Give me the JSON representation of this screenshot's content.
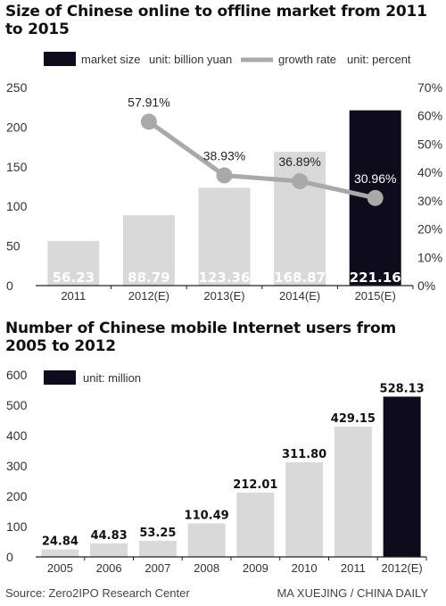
{
  "chart_data": [
    {
      "type": "bar",
      "title": "Size of Chinese online to offline market from 2011 to 2015",
      "categories": [
        "2011",
        "2012(E)",
        "2013(E)",
        "2014(E)",
        "2015(E)"
      ],
      "series": [
        {
          "name": "market size",
          "values": [
            56.23,
            88.79,
            123.36,
            168.87,
            221.16
          ],
          "labels": [
            "56.23",
            "88.79",
            "123.36",
            "168.87",
            "221.16"
          ],
          "highlight_index": 4
        }
      ],
      "line_series": {
        "name": "growth rate",
        "values": [
          null,
          57.91,
          38.93,
          36.89,
          30.96
        ],
        "labels": [
          "",
          "57.91%",
          "38.93%",
          "36.89%",
          "30.96%"
        ]
      },
      "legend": {
        "market_label": "market size",
        "market_unit": "unit: billion yuan",
        "growth_label": "growth rate",
        "growth_unit": "unit: percent",
        "placement": "top"
      },
      "ylim": [
        0,
        250
      ],
      "y_ticks": [
        "0",
        "50",
        "100",
        "150",
        "200",
        "250"
      ],
      "y2lim": [
        0,
        70
      ],
      "y2_ticks": [
        "0%",
        "10%",
        "20%",
        "30%",
        "40%",
        "50%",
        "60%",
        "70%"
      ],
      "grid": false
    },
    {
      "type": "bar",
      "title": "Number of Chinese mobile Internet users from 2005 to 2012",
      "categories": [
        "2005",
        "2006",
        "2007",
        "2008",
        "2009",
        "2010",
        "2011",
        "2012(E)"
      ],
      "series": [
        {
          "name": "",
          "values": [
            24.84,
            44.83,
            53.25,
            110.49,
            212.01,
            311.8,
            429.15,
            528.13
          ],
          "labels": [
            "24.84",
            "44.83",
            "53.25",
            "110.49",
            "212.01",
            "311.80",
            "429.15",
            "528.13"
          ],
          "highlight_index": 7
        }
      ],
      "legend": {
        "unit": "unit: million",
        "placement": "top-left"
      },
      "ylim": [
        0,
        600
      ],
      "y_ticks": [
        "0",
        "100",
        "200",
        "300",
        "400",
        "500",
        "600"
      ],
      "grid": false
    }
  ],
  "colors": {
    "bar": "#d9d9d9",
    "highlight": "#0d0b1c",
    "line": "#a9a9a9",
    "axis": "#222222",
    "bar_label": "#ffffff"
  },
  "footer": {
    "source": "Source: Zero2IPO Research Center",
    "credit": "MA XUEJING / CHINA DAILY"
  }
}
